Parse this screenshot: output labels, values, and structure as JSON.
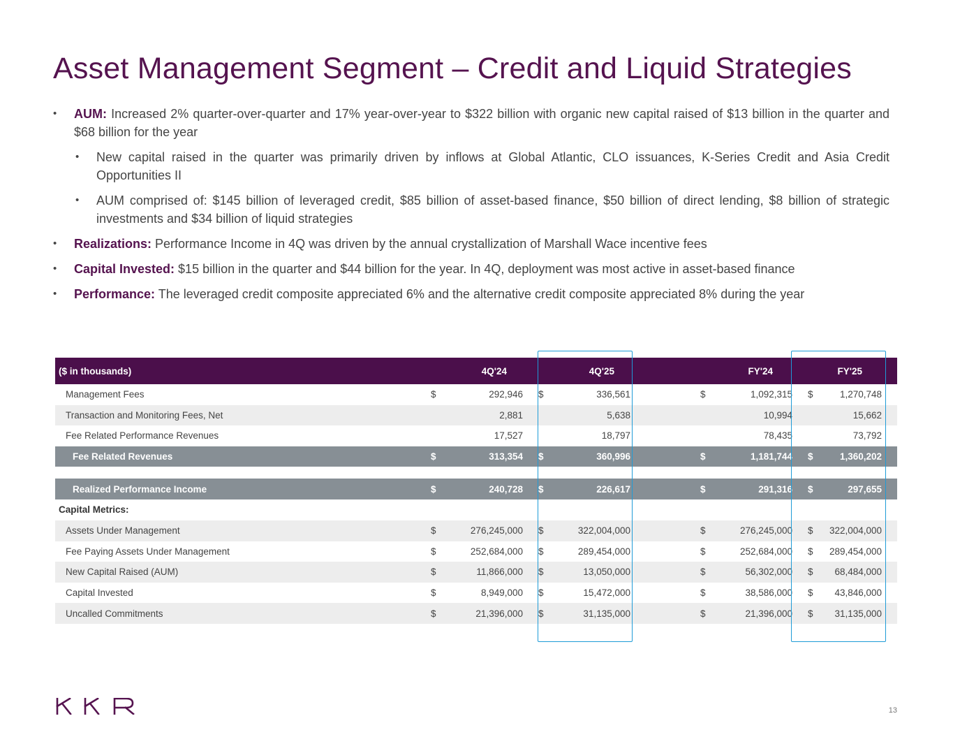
{
  "title": "Asset Management Segment – Credit and Liquid Strategies",
  "bullets": [
    {
      "lead": "AUM:",
      "text": " Increased 2% quarter-over-quarter and 17% year-over-year to $322 billion with organic new capital raised of $13 billion in the quarter and $68 billion for the year",
      "level": 1
    },
    {
      "lead": "",
      "text": "New capital raised in the quarter was primarily driven by inflows at Global Atlantic, CLO issuances, K-Series Credit and Asia Credit Opportunities II",
      "level": 2
    },
    {
      "lead": "",
      "text": "AUM comprised of: $145 billion of leveraged credit, $85 billion of asset-based finance, $50 billion of direct lending, $8 billion of strategic investments and $34 billion of liquid strategies",
      "level": 2
    },
    {
      "lead": "Realizations:",
      "text": " Performance Income in 4Q was driven by the annual crystallization of Marshall Wace incentive fees",
      "level": 1
    },
    {
      "lead": "Capital Invested:",
      "text": " $15 billion in the quarter and $44 billion for the year. In 4Q, deployment was most active in asset-based finance",
      "level": 1
    },
    {
      "lead": "Performance:",
      "text": " The leveraged credit composite appreciated 6% and the alternative credit composite appreciated 8% during the year",
      "level": 1
    }
  ],
  "table": {
    "header_label": "($ in thousands)",
    "columns": [
      "4Q'24",
      "4Q'25",
      "FY'24",
      "FY'25"
    ],
    "rows": [
      {
        "label": "Management Fees",
        "dollar": true,
        "values": [
          "292,946",
          "336,561",
          "1,092,315",
          "1,270,748"
        ]
      },
      {
        "label": "Transaction and Monitoring Fees, Net",
        "dollar": false,
        "values": [
          "2,881",
          "5,638",
          "10,994",
          "15,662"
        ]
      },
      {
        "label": "Fee Related Performance Revenues",
        "dollar": false,
        "values": [
          "17,527",
          "18,797",
          "78,435",
          "73,792"
        ]
      },
      {
        "label": "Fee Related Revenues",
        "dollar": true,
        "values": [
          "313,354",
          "360,996",
          "1,181,744",
          "1,360,202"
        ]
      },
      {
        "label": "Realized Performance Income",
        "dollar": true,
        "values": [
          "240,728",
          "226,617",
          "291,316",
          "297,655"
        ]
      }
    ],
    "section_label": "Capital Metrics:",
    "metrics": [
      {
        "label": "Assets Under Management",
        "values": [
          "276,245,000",
          "322,004,000",
          "276,245,000",
          "322,004,000"
        ]
      },
      {
        "label": "Fee Paying Assets Under Management",
        "values": [
          "252,684,000",
          "289,454,000",
          "252,684,000",
          "289,454,000"
        ]
      },
      {
        "label": "New Capital Raised (AUM)",
        "values": [
          "11,866,000",
          "13,050,000",
          "56,302,000",
          "68,484,000"
        ]
      },
      {
        "label": "Capital Invested",
        "values": [
          "8,949,000",
          "15,472,000",
          "38,586,000",
          "43,846,000"
        ]
      },
      {
        "label": "Uncalled Commitments",
        "values": [
          "21,396,000",
          "31,135,000",
          "21,396,000",
          "31,135,000"
        ]
      }
    ],
    "dollar_sign": "$"
  },
  "logo_text": "KKR",
  "page_number": "13",
  "colors": {
    "brand": "#55134f",
    "header_bg": "#4b0f4b",
    "total_bg": "#878f95",
    "highlight": "#1e9bd7"
  }
}
